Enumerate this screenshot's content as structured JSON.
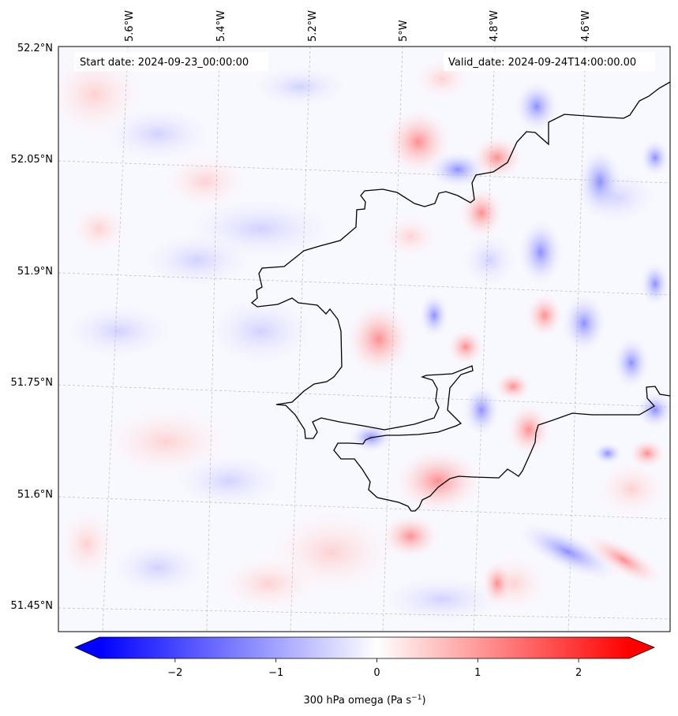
{
  "map": {
    "start_date_label": "Start date: 2024-09-23_00:00:00",
    "valid_date_label": "Valid_date: 2024-09-24T14:00:00.00",
    "lon_ticks": [
      "5.6°W",
      "5.4°W",
      "5.2°W",
      "5°W",
      "4.8°W",
      "4.6°W"
    ],
    "lat_ticks": [
      "52.2°N",
      "52.05°N",
      "51.9°N",
      "51.75°N",
      "51.6°N",
      "51.45°N"
    ],
    "field": "300 hPa omega",
    "colors": {
      "negative": "#0000ff",
      "neutral": "#ffffff",
      "positive": "#ff0000",
      "coast": "#000000"
    }
  },
  "colorbar": {
    "ticks": [
      "−2",
      "−1",
      "0",
      "1",
      "2"
    ],
    "tick_values": [
      -2,
      -1,
      0,
      1,
      2
    ],
    "range": [
      -2.75,
      2.5
    ],
    "label_main": "300 hPa omega (Pa s",
    "label_exp": "−1",
    "label_close": ")"
  }
}
